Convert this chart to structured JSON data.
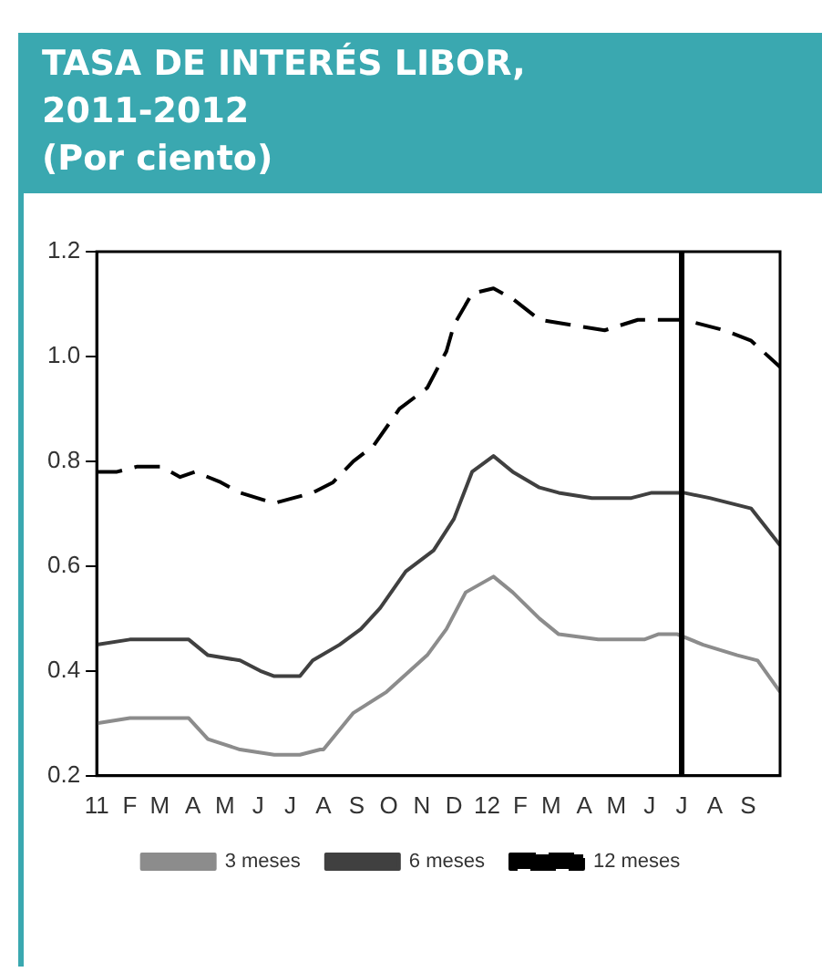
{
  "chart_data": {
    "type": "line",
    "title": "TASA DE INTERÉS LIBOR, 2011-2012",
    "subtitle": "(Por ciento)",
    "xlim": [
      "2011-01",
      "2012-10"
    ],
    "xticks": [
      {
        "value": "2011-01",
        "label": "11"
      },
      {
        "value": "2011-02",
        "label": "F"
      },
      {
        "value": "2011-03",
        "label": "M"
      },
      {
        "value": "2011-04",
        "label": "A"
      },
      {
        "value": "2011-05",
        "label": "M"
      },
      {
        "value": "2011-06",
        "label": "J"
      },
      {
        "value": "2011-07",
        "label": "J"
      },
      {
        "value": "2011-08",
        "label": "A"
      },
      {
        "value": "2011-09",
        "label": "S"
      },
      {
        "value": "2011-10",
        "label": "O"
      },
      {
        "value": "2011-11",
        "label": "N"
      },
      {
        "value": "2011-12",
        "label": "D"
      },
      {
        "value": "2012-01",
        "label": "12"
      },
      {
        "value": "2012-02",
        "label": "F"
      },
      {
        "value": "2012-03",
        "label": "M"
      },
      {
        "value": "2012-04",
        "label": "A"
      },
      {
        "value": "2012-05",
        "label": "M"
      },
      {
        "value": "2012-06",
        "label": "J"
      },
      {
        "value": "2012-07",
        "label": "J"
      },
      {
        "value": "2012-08",
        "label": "A"
      },
      {
        "value": "2012-09",
        "label": "S"
      }
    ],
    "ylim": [
      0.2,
      1.2
    ],
    "yticks": [
      0.2,
      0.4,
      0.6,
      0.8,
      {
        "value": 1,
        "label": "1.0"
      },
      1.2
    ],
    "grid": false,
    "legend": "bottom",
    "marker": "none",
    "ref_lines": [
      {
        "axis": "x",
        "value": "2012-07",
        "color": "#000000"
      }
    ],
    "series": [
      {
        "name": "3 meses",
        "color": "#8c8c8c",
        "line_style": "solid",
        "x": [
          "2011-01-01",
          "2011-02-01",
          "2011-03-28",
          "2011-04-15",
          "2011-05-15",
          "2011-06-16",
          "2011-07-10",
          "2011-07-29",
          "2011-08-01",
          "2011-08-29",
          "2011-09-29",
          "2011-11-06",
          "2011-11-24",
          "2011-12-12",
          "2012-01-07",
          "2012-01-25",
          "2012-02-19",
          "2012-03-08",
          "2012-04-14",
          "2012-05-27",
          "2012-06-09",
          "2012-06-27",
          "2012-07-21",
          "2012-08-22",
          "2012-09-10",
          "2012-10-01"
        ],
        "values": [
          0.3,
          0.31,
          0.31,
          0.27,
          0.25,
          0.24,
          0.24,
          0.25,
          0.25,
          0.32,
          0.36,
          0.43,
          0.48,
          0.55,
          0.58,
          0.55,
          0.5,
          0.47,
          0.46,
          0.46,
          0.47,
          0.47,
          0.45,
          0.43,
          0.42,
          0.36
        ]
      },
      {
        "name": "6 meses",
        "color": "#404040",
        "line_style": "solid",
        "x": [
          "2011-01-01",
          "2011-02-01",
          "2011-03-28",
          "2011-04-15",
          "2011-05-15",
          "2011-06-03",
          "2011-06-16",
          "2011-07-10",
          "2011-07-22",
          "2011-08-16",
          "2011-09-05",
          "2011-09-23",
          "2011-10-17",
          "2011-11-12",
          "2011-12-01",
          "2011-12-18",
          "2012-01-07",
          "2012-01-25",
          "2012-02-19",
          "2012-03-08",
          "2012-04-08",
          "2012-05-15",
          "2012-06-03",
          "2012-07-03",
          "2012-07-27",
          "2012-09-04",
          "2012-10-01"
        ],
        "values": [
          0.45,
          0.46,
          0.46,
          0.43,
          0.42,
          0.4,
          0.39,
          0.39,
          0.42,
          0.45,
          0.48,
          0.52,
          0.59,
          0.63,
          0.69,
          0.78,
          0.81,
          0.78,
          0.75,
          0.74,
          0.73,
          0.73,
          0.74,
          0.74,
          0.73,
          0.71,
          0.64
        ]
      },
      {
        "name": "12 meses",
        "color": "#000000",
        "line_style": "dashed",
        "x": [
          "2011-01-01",
          "2011-01-20",
          "2011-02-08",
          "2011-03-02",
          "2011-03-20",
          "2011-04-03",
          "2011-04-27",
          "2011-05-15",
          "2011-06-16",
          "2011-07-04",
          "2011-07-22",
          "2011-08-10",
          "2011-08-29",
          "2011-09-17",
          "2011-10-11",
          "2011-11-06",
          "2011-11-24",
          "2011-12-01",
          "2011-12-18",
          "2012-01-07",
          "2012-01-25",
          "2012-02-19",
          "2012-03-20",
          "2012-04-20",
          "2012-05-21",
          "2012-07-03",
          "2012-08-10",
          "2012-09-04",
          "2012-10-01"
        ],
        "values": [
          0.78,
          0.78,
          0.79,
          0.79,
          0.77,
          0.78,
          0.76,
          0.74,
          0.72,
          0.73,
          0.74,
          0.76,
          0.8,
          0.83,
          0.9,
          0.94,
          1.01,
          1.06,
          1.12,
          1.13,
          1.11,
          1.07,
          1.06,
          1.05,
          1.07,
          1.07,
          1.05,
          1.03,
          0.98
        ]
      }
    ]
  }
}
